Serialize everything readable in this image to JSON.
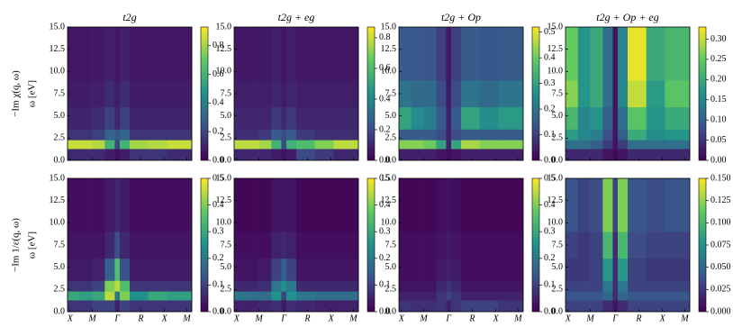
{
  "chart_data": {
    "type": "heatmap",
    "column_titles": [
      "t2g",
      "t2g + eg",
      "t2g + Op",
      "t2g + Op + eg"
    ],
    "row_labels": [
      {
        "quantity": "−Im χ(q, ω)",
        "axis": "ω [eV]"
      },
      {
        "quantity": "−Im 1/ε(q, ω)",
        "axis": "ω [eV]"
      }
    ],
    "xlim": [
      0,
      1
    ],
    "xticks": [
      {
        "value": 0.02,
        "label": "X"
      },
      {
        "value": 0.2,
        "label": "M"
      },
      {
        "value": 0.4,
        "label": "Γ"
      },
      {
        "value": 0.59,
        "label": "R"
      },
      {
        "value": 0.78,
        "label": "X"
      },
      {
        "value": 0.96,
        "label": "M"
      }
    ],
    "ylim": [
      0,
      15
    ],
    "yticks": [
      {
        "value": 0,
        "label": "0.0"
      },
      {
        "value": 2.5,
        "label": "2.5"
      },
      {
        "value": 5,
        "label": "5.0"
      },
      {
        "value": 7.5,
        "label": "7.5"
      },
      {
        "value": 10,
        "label": "10.0"
      },
      {
        "value": 12.5,
        "label": "12.5"
      },
      {
        "value": 15,
        "label": "15.0"
      }
    ],
    "x_edges": [
      0,
      0.1,
      0.2,
      0.3,
      0.38,
      0.42,
      0.5,
      0.65,
      0.8,
      1.0
    ],
    "y_edges": [
      0,
      1.3,
      2.3,
      3.5,
      6,
      9,
      15
    ],
    "panels": [
      {
        "zlim": [
          0,
          0.93
        ],
        "zticks": [
          {
            "value": 0,
            "label": "0.0"
          },
          {
            "value": 0.2,
            "label": "0.2"
          },
          {
            "value": 0.4,
            "label": "0.4"
          },
          {
            "value": 0.6,
            "label": "0.6"
          },
          {
            "value": 0.8,
            "label": "0.8"
          }
        ],
        "z": [
          [
            0.12,
            0.12,
            0.12,
            0.08,
            0.05,
            0.08,
            0.15,
            0.15,
            0.12
          ],
          [
            0.85,
            0.85,
            0.82,
            0.6,
            0.2,
            0.6,
            0.8,
            0.82,
            0.85
          ],
          [
            0.15,
            0.15,
            0.18,
            0.3,
            0.25,
            0.3,
            0.15,
            0.15,
            0.15
          ],
          [
            0.1,
            0.1,
            0.12,
            0.18,
            0.1,
            0.18,
            0.1,
            0.1,
            0.1
          ],
          [
            0.08,
            0.08,
            0.09,
            0.12,
            0.08,
            0.12,
            0.08,
            0.08,
            0.08
          ],
          [
            0.06,
            0.06,
            0.07,
            0.09,
            0.06,
            0.09,
            0.06,
            0.06,
            0.06
          ]
        ]
      },
      {
        "zlim": [
          0,
          0.87
        ],
        "zticks": [
          {
            "value": 0,
            "label": "0.0"
          },
          {
            "value": 0.2,
            "label": "0.2"
          },
          {
            "value": 0.4,
            "label": "0.4"
          },
          {
            "value": 0.6,
            "label": "0.6"
          },
          {
            "value": 0.8,
            "label": "0.8"
          }
        ],
        "z": [
          [
            0.1,
            0.1,
            0.1,
            0.07,
            0.05,
            0.07,
            0.2,
            0.15,
            0.1
          ],
          [
            0.78,
            0.78,
            0.75,
            0.55,
            0.2,
            0.55,
            0.6,
            0.7,
            0.78
          ],
          [
            0.12,
            0.12,
            0.15,
            0.25,
            0.2,
            0.25,
            0.15,
            0.12,
            0.12
          ],
          [
            0.1,
            0.1,
            0.1,
            0.15,
            0.1,
            0.15,
            0.1,
            0.1,
            0.1
          ],
          [
            0.08,
            0.08,
            0.08,
            0.1,
            0.07,
            0.1,
            0.08,
            0.08,
            0.08
          ],
          [
            0.06,
            0.06,
            0.06,
            0.08,
            0.05,
            0.08,
            0.06,
            0.06,
            0.06
          ]
        ]
      },
      {
        "zlim": [
          0,
          0.52
        ],
        "zticks": [
          {
            "value": 0,
            "label": "0.0"
          },
          {
            "value": 0.1,
            "label": "0.1"
          },
          {
            "value": 0.2,
            "label": "0.2"
          },
          {
            "value": 0.3,
            "label": "0.3"
          },
          {
            "value": 0.4,
            "label": "0.4"
          },
          {
            "value": 0.5,
            "label": "0.5"
          }
        ],
        "z": [
          [
            0.05,
            0.05,
            0.05,
            0.03,
            0.02,
            0.03,
            0.05,
            0.05,
            0.05
          ],
          [
            0.42,
            0.42,
            0.4,
            0.3,
            0.05,
            0.3,
            0.45,
            0.42,
            0.42
          ],
          [
            0.15,
            0.15,
            0.15,
            0.12,
            0.05,
            0.12,
            0.15,
            0.15,
            0.15
          ],
          [
            0.3,
            0.25,
            0.22,
            0.15,
            0.05,
            0.15,
            0.3,
            0.25,
            0.28
          ],
          [
            0.2,
            0.18,
            0.18,
            0.12,
            0.04,
            0.12,
            0.2,
            0.18,
            0.2
          ],
          [
            0.15,
            0.14,
            0.14,
            0.1,
            0.04,
            0.1,
            0.15,
            0.14,
            0.15
          ]
        ]
      },
      {
        "zlim": [
          0,
          0.33
        ],
        "zticks": [
          {
            "value": 0,
            "label": "0.00"
          },
          {
            "value": 0.05,
            "label": "0.05"
          },
          {
            "value": 0.1,
            "label": "0.10"
          },
          {
            "value": 0.15,
            "label": "0.15"
          },
          {
            "value": 0.2,
            "label": "0.20"
          },
          {
            "value": 0.25,
            "label": "0.25"
          },
          {
            "value": 0.3,
            "label": "0.30"
          }
        ],
        "z": [
          [
            0.04,
            0.04,
            0.04,
            0.02,
            0.01,
            0.02,
            0.04,
            0.04,
            0.04
          ],
          [
            0.12,
            0.12,
            0.1,
            0.06,
            0.02,
            0.06,
            0.12,
            0.12,
            0.12
          ],
          [
            0.18,
            0.15,
            0.14,
            0.08,
            0.02,
            0.1,
            0.2,
            0.16,
            0.17
          ],
          [
            0.22,
            0.15,
            0.17,
            0.1,
            0.02,
            0.12,
            0.24,
            0.17,
            0.2
          ],
          [
            0.27,
            0.17,
            0.2,
            0.12,
            0.02,
            0.15,
            0.3,
            0.18,
            0.24
          ],
          [
            0.25,
            0.17,
            0.2,
            0.12,
            0.02,
            0.15,
            0.32,
            0.2,
            0.22
          ]
        ]
      },
      {
        "zlim": [
          0,
          0.5
        ],
        "zticks": [
          {
            "value": 0,
            "label": "0.0"
          },
          {
            "value": 0.1,
            "label": "0.1"
          },
          {
            "value": 0.2,
            "label": "0.2"
          },
          {
            "value": 0.3,
            "label": "0.3"
          },
          {
            "value": 0.4,
            "label": "0.4"
          },
          {
            "value": 0.5,
            "label": "0.5"
          }
        ],
        "z": [
          [
            0.08,
            0.08,
            0.1,
            0.1,
            0.05,
            0.1,
            0.08,
            0.08,
            0.08
          ],
          [
            0.3,
            0.28,
            0.3,
            0.45,
            0.2,
            0.4,
            0.25,
            0.3,
            0.28
          ],
          [
            0.08,
            0.08,
            0.1,
            0.4,
            0.45,
            0.35,
            0.08,
            0.08,
            0.08
          ],
          [
            0.04,
            0.04,
            0.05,
            0.15,
            0.35,
            0.12,
            0.04,
            0.04,
            0.04
          ],
          [
            0.03,
            0.03,
            0.03,
            0.06,
            0.12,
            0.06,
            0.03,
            0.03,
            0.03
          ],
          [
            0.02,
            0.02,
            0.02,
            0.04,
            0.06,
            0.04,
            0.02,
            0.02,
            0.02
          ]
        ]
      },
      {
        "zlim": [
          0,
          0.5
        ],
        "zticks": [
          {
            "value": 0,
            "label": "0.0"
          },
          {
            "value": 0.1,
            "label": "0.1"
          },
          {
            "value": 0.2,
            "label": "0.2"
          },
          {
            "value": 0.3,
            "label": "0.3"
          },
          {
            "value": 0.4,
            "label": "0.4"
          },
          {
            "value": 0.5,
            "label": "0.5"
          }
        ],
        "z": [
          [
            0.05,
            0.05,
            0.06,
            0.07,
            0.04,
            0.07,
            0.06,
            0.05,
            0.05
          ],
          [
            0.2,
            0.18,
            0.18,
            0.25,
            0.1,
            0.25,
            0.2,
            0.18,
            0.18
          ],
          [
            0.06,
            0.06,
            0.07,
            0.2,
            0.25,
            0.2,
            0.06,
            0.06,
            0.06
          ],
          [
            0.03,
            0.03,
            0.04,
            0.1,
            0.15,
            0.1,
            0.03,
            0.03,
            0.03
          ],
          [
            0.02,
            0.02,
            0.02,
            0.05,
            0.06,
            0.05,
            0.02,
            0.02,
            0.02
          ],
          [
            0.01,
            0.01,
            0.01,
            0.03,
            0.03,
            0.03,
            0.01,
            0.01,
            0.01
          ]
        ]
      },
      {
        "zlim": [
          0,
          0.5
        ],
        "zticks": [
          {
            "value": 0,
            "label": "0.0"
          },
          {
            "value": 0.1,
            "label": "0.1"
          },
          {
            "value": 0.2,
            "label": "0.2"
          },
          {
            "value": 0.3,
            "label": "0.3"
          },
          {
            "value": 0.4,
            "label": "0.4"
          },
          {
            "value": 0.5,
            "label": "0.5"
          }
        ],
        "z": [
          [
            0.08,
            0.07,
            0.07,
            0.08,
            0.05,
            0.08,
            0.1,
            0.1,
            0.08
          ],
          [
            0.05,
            0.05,
            0.05,
            0.08,
            0.1,
            0.08,
            0.05,
            0.05,
            0.05
          ],
          [
            0.03,
            0.03,
            0.03,
            0.06,
            0.08,
            0.06,
            0.03,
            0.03,
            0.03
          ],
          [
            0.02,
            0.02,
            0.02,
            0.04,
            0.05,
            0.04,
            0.02,
            0.02,
            0.02
          ],
          [
            0.02,
            0.02,
            0.02,
            0.03,
            0.04,
            0.03,
            0.02,
            0.02,
            0.02
          ],
          [
            0.01,
            0.01,
            0.01,
            0.02,
            0.03,
            0.02,
            0.01,
            0.01,
            0.01
          ]
        ]
      },
      {
        "zlim": [
          0,
          0.15
        ],
        "zticks": [
          {
            "value": 0,
            "label": "0.000"
          },
          {
            "value": 0.025,
            "label": "0.025"
          },
          {
            "value": 0.05,
            "label": "0.050"
          },
          {
            "value": 0.075,
            "label": "0.075"
          },
          {
            "value": 0.1,
            "label": "0.100"
          },
          {
            "value": 0.125,
            "label": "0.125"
          },
          {
            "value": 0.15,
            "label": "0.150"
          }
        ],
        "z": [
          [
            0.03,
            0.03,
            0.03,
            0.02,
            0.01,
            0.02,
            0.03,
            0.03,
            0.03
          ],
          [
            0.04,
            0.04,
            0.04,
            0.05,
            0.02,
            0.05,
            0.04,
            0.04,
            0.04
          ],
          [
            0.03,
            0.03,
            0.03,
            0.06,
            0.02,
            0.06,
            0.03,
            0.03,
            0.03
          ],
          [
            0.025,
            0.025,
            0.03,
            0.08,
            0.02,
            0.08,
            0.03,
            0.025,
            0.025
          ],
          [
            0.03,
            0.025,
            0.03,
            0.1,
            0.02,
            0.1,
            0.035,
            0.03,
            0.03
          ],
          [
            0.04,
            0.03,
            0.035,
            0.12,
            0.03,
            0.12,
            0.04,
            0.035,
            0.04
          ]
        ]
      }
    ]
  }
}
